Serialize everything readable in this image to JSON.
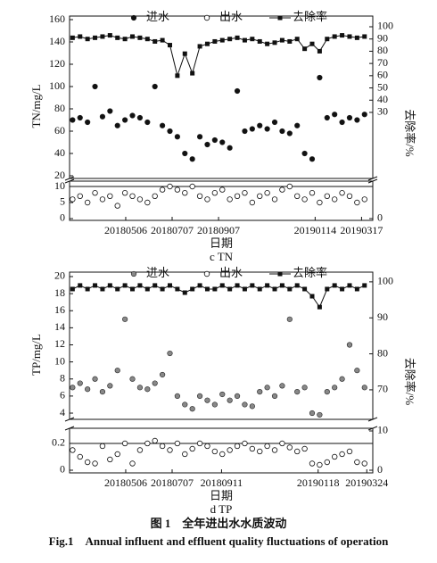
{
  "caption_cn": "图 1　全年进出水水质波动",
  "caption_en": "Fig.1　Annual influent and effluent quality fluctuations of operation",
  "chart_data": [
    {
      "type": "scatter",
      "ylabel": "TN/mg/L",
      "y2label": "去除率/%",
      "xlim": [
        "2018-02-20",
        "2019-04-01"
      ],
      "ylim": [
        17.6,
        163.2
      ],
      "yticks": [
        20,
        40,
        60,
        80,
        100,
        120,
        140,
        160
      ],
      "y2lim": [
        -24,
        108.75
      ],
      "y2ticks": [
        30,
        40,
        50,
        60,
        70,
        80,
        90,
        100
      ],
      "x": [
        "2018-02-24",
        "2018-03-06",
        "2018-03-16",
        "2018-03-26",
        "2018-04-05",
        "2018-04-15",
        "2018-04-25",
        "2018-05-05",
        "2018-05-15",
        "2018-05-25",
        "2018-06-04",
        "2018-06-14",
        "2018-06-24",
        "2018-07-04",
        "2018-07-14",
        "2018-07-24",
        "2018-08-03",
        "2018-08-13",
        "2018-08-23",
        "2018-09-02",
        "2018-09-12",
        "2018-09-22",
        "2018-10-02",
        "2018-10-12",
        "2018-10-22",
        "2018-11-01",
        "2018-11-11",
        "2018-11-21",
        "2018-12-01",
        "2018-12-11",
        "2018-12-21",
        "2018-12-31",
        "2019-01-10",
        "2019-01-20",
        "2019-01-30",
        "2019-02-09",
        "2019-02-19",
        "2019-03-01",
        "2019-03-11",
        "2019-03-21"
      ],
      "series": [
        {
          "name": "进水",
          "color": "#111111",
          "marker": "filled",
          "values": [
            70,
            72,
            68,
            100,
            73,
            78,
            65,
            70,
            74,
            72,
            68,
            100,
            65,
            60,
            55,
            40,
            35,
            55,
            48,
            52,
            50,
            45,
            96,
            60,
            62,
            65,
            62,
            68,
            60,
            58,
            65,
            40,
            35,
            108,
            72,
            75,
            68,
            72,
            70,
            75
          ]
        },
        {
          "name": "去除率",
          "color": "#111111",
          "marker": "square-line",
          "axis": "y2",
          "values": [
            91,
            92,
            90,
            91,
            92,
            93,
            91,
            90,
            92,
            91,
            90,
            88,
            89,
            85,
            60,
            78,
            62,
            84,
            86,
            88,
            89,
            90,
            91,
            89,
            90,
            88,
            86,
            87,
            89,
            88,
            90,
            82,
            86,
            80,
            90,
            92,
            93,
            92,
            91,
            92
          ]
        }
      ]
    },
    {
      "type": "scatter",
      "xlabel": "日期",
      "caption": "c TN",
      "xlim": [
        "2018-02-20",
        "2019-04-01"
      ],
      "xticks": [
        {
          "value": "2018-05-06",
          "label": "20180506"
        },
        {
          "value": "2018-07-07",
          "label": "20180707"
        },
        {
          "value": "2018-09-07",
          "label": "20180907"
        },
        {
          "value": "2019-01-14",
          "label": "20190114"
        },
        {
          "value": "2019-03-17",
          "label": "20190317"
        }
      ],
      "ylim": [
        -0.56,
        11.67
      ],
      "yticks": [
        0,
        5,
        10
      ],
      "reference_line": 10,
      "y2lim": [
        -0.56,
        11.67
      ],
      "y2ticks": [
        0
      ],
      "x": [
        "2018-02-24",
        "2018-03-06",
        "2018-03-16",
        "2018-03-26",
        "2018-04-05",
        "2018-04-15",
        "2018-04-25",
        "2018-05-05",
        "2018-05-15",
        "2018-05-25",
        "2018-06-04",
        "2018-06-14",
        "2018-06-24",
        "2018-07-04",
        "2018-07-14",
        "2018-07-24",
        "2018-08-03",
        "2018-08-13",
        "2018-08-23",
        "2018-09-02",
        "2018-09-12",
        "2018-09-22",
        "2018-10-02",
        "2018-10-12",
        "2018-10-22",
        "2018-11-01",
        "2018-11-11",
        "2018-11-21",
        "2018-12-01",
        "2018-12-11",
        "2018-12-21",
        "2018-12-31",
        "2019-01-10",
        "2019-01-20",
        "2019-01-30",
        "2019-02-09",
        "2019-02-19",
        "2019-03-01",
        "2019-03-11",
        "2019-03-21"
      ],
      "series": [
        {
          "name": "出水",
          "color": "#111111",
          "marker": "open",
          "values": [
            6,
            7,
            5,
            8,
            6,
            7,
            4,
            8,
            7,
            6,
            5,
            7,
            9,
            10,
            9,
            8,
            10,
            7,
            6,
            8,
            9,
            6,
            7,
            8,
            5,
            7,
            8,
            6,
            9,
            10,
            7,
            6,
            8,
            5,
            7,
            6,
            8,
            7,
            5,
            6
          ]
        }
      ]
    },
    {
      "type": "scatter",
      "ylabel": "TP/mg/L",
      "y2label": "去除率/%",
      "xlim": [
        "2018-02-20",
        "2019-04-01"
      ],
      "ylim": [
        3.27,
        20.52
      ],
      "yticks": [
        4,
        6,
        8,
        10,
        12,
        14,
        16,
        18,
        20
      ],
      "y2lim": [
        61.8,
        102.7
      ],
      "y2ticks": [
        70,
        80,
        90,
        100
      ],
      "x": [
        "2018-02-24",
        "2018-03-06",
        "2018-03-16",
        "2018-03-26",
        "2018-04-05",
        "2018-04-15",
        "2018-04-25",
        "2018-05-05",
        "2018-05-15",
        "2018-05-25",
        "2018-06-04",
        "2018-06-14",
        "2018-06-24",
        "2018-07-04",
        "2018-07-14",
        "2018-07-24",
        "2018-08-03",
        "2018-08-13",
        "2018-08-23",
        "2018-09-02",
        "2018-09-12",
        "2018-09-22",
        "2018-10-02",
        "2018-10-12",
        "2018-10-22",
        "2018-11-01",
        "2018-11-11",
        "2018-11-21",
        "2018-12-01",
        "2018-12-11",
        "2018-12-21",
        "2018-12-31",
        "2019-01-10",
        "2019-01-20",
        "2019-01-30",
        "2019-02-09",
        "2019-02-19",
        "2019-03-01",
        "2019-03-11",
        "2019-03-21"
      ],
      "series": [
        {
          "name": "进水",
          "color": "#888888",
          "marker": "filled",
          "values": [
            7,
            7.5,
            6.8,
            8,
            6.5,
            7.2,
            9,
            15,
            8,
            7,
            6.8,
            7.5,
            8.5,
            11,
            6,
            5,
            4.5,
            6,
            5.5,
            5,
            6.2,
            5.5,
            6,
            5,
            4.8,
            6.5,
            7,
            6,
            7.2,
            15,
            6.5,
            7,
            4,
            3.8,
            6.5,
            7,
            8,
            12,
            9,
            7
          ]
        },
        {
          "name": "去除率",
          "color": "#111111",
          "marker": "square-line",
          "axis": "y2",
          "values": [
            98,
            99,
            98,
            99,
            98,
            99,
            98,
            99,
            98,
            99,
            98,
            99,
            98,
            99,
            98,
            97,
            98,
            99,
            98,
            98,
            99,
            98,
            99,
            98,
            99,
            98,
            99,
            98,
            99,
            98,
            99,
            98,
            96,
            93,
            98,
            99,
            98,
            99,
            98,
            99
          ]
        }
      ]
    },
    {
      "type": "scatter",
      "xlabel": "日期",
      "caption": "d TP",
      "xlim": [
        "2018-02-20",
        "2019-04-01"
      ],
      "xticks": [
        {
          "value": "2018-05-06",
          "label": "20180506"
        },
        {
          "value": "2018-07-07",
          "label": "20180707"
        },
        {
          "value": "2018-09-11",
          "label": "20180911"
        },
        {
          "value": "2019-01-18",
          "label": "20190118"
        },
        {
          "value": "2019-03-24",
          "label": "20190324"
        }
      ],
      "ylim": [
        -0.02,
        0.313
      ],
      "yticks": [
        0.0,
        0.2
      ],
      "reference_line": 0.2,
      "y2lim": [
        -0.68,
        10.68
      ],
      "y2ticks": [
        0,
        10
      ],
      "x": [
        "2018-02-24",
        "2018-03-06",
        "2018-03-16",
        "2018-03-26",
        "2018-04-05",
        "2018-04-15",
        "2018-04-25",
        "2018-05-05",
        "2018-05-15",
        "2018-05-25",
        "2018-06-04",
        "2018-06-14",
        "2018-06-24",
        "2018-07-04",
        "2018-07-14",
        "2018-07-24",
        "2018-08-03",
        "2018-08-13",
        "2018-08-23",
        "2018-09-02",
        "2018-09-12",
        "2018-09-22",
        "2018-10-02",
        "2018-10-12",
        "2018-10-22",
        "2018-11-01",
        "2018-11-11",
        "2018-11-21",
        "2018-12-01",
        "2018-12-11",
        "2018-12-21",
        "2018-12-31",
        "2019-01-10",
        "2019-01-20",
        "2019-01-30",
        "2019-02-09",
        "2019-02-19",
        "2019-03-01",
        "2019-03-11",
        "2019-03-21"
      ],
      "series": [
        {
          "name": "出水",
          "color": "#111111",
          "marker": "open",
          "values": [
            0.15,
            0.1,
            0.06,
            0.05,
            0.18,
            0.08,
            0.12,
            0.2,
            0.05,
            0.15,
            0.2,
            0.22,
            0.18,
            0.15,
            0.2,
            0.12,
            0.16,
            0.2,
            0.18,
            0.14,
            0.12,
            0.15,
            0.18,
            0.2,
            0.16,
            0.14,
            0.18,
            0.15,
            0.2,
            0.17,
            0.14,
            0.16,
            0.05,
            0.04,
            0.06,
            0.1,
            0.12,
            0.14,
            0.06,
            0.05
          ]
        }
      ]
    }
  ]
}
